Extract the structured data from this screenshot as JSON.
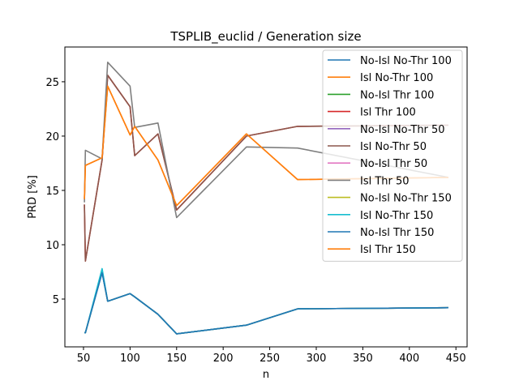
{
  "chart_data": {
    "type": "line",
    "title": "TSPLIB_euclid / Generation size",
    "xlabel": "n",
    "ylabel": "PRD [%]",
    "xlim": [
      30,
      462
    ],
    "ylim": [
      0.6,
      28.2
    ],
    "xticks": [
      50,
      100,
      150,
      200,
      250,
      300,
      350,
      400,
      450
    ],
    "yticks": [
      5,
      10,
      15,
      20,
      25
    ],
    "grid": false,
    "legend_position": "top-right",
    "x": [
      51,
      52,
      70,
      76,
      100,
      105,
      130,
      150,
      225,
      280,
      442
    ],
    "series": [
      {
        "name": "No-Isl No-Thr 100",
        "color": "#1f77b4",
        "values": [
          1.9,
          1.9,
          7.5,
          4.8,
          5.5,
          5.2,
          3.6,
          1.8,
          2.6,
          4.1,
          4.2
        ]
      },
      {
        "name": "Isl No-Thr 100",
        "color": "#ff7f0e",
        "values": [
          14.2,
          17.3,
          18.0,
          24.6,
          20.1,
          20.9,
          17.8,
          13.6,
          20.2,
          16.0,
          16.2
        ]
      },
      {
        "name": "No-Isl Thr 100",
        "color": "#2ca02c",
        "values": [
          1.9,
          1.9,
          7.5,
          4.8,
          5.5,
          5.2,
          3.6,
          1.8,
          2.6,
          4.1,
          4.2
        ]
      },
      {
        "name": "Isl Thr 100",
        "color": "#d62728",
        "values": [
          13.7,
          8.5,
          17.8,
          25.6,
          22.7,
          18.2,
          20.2,
          13.2,
          20.0,
          20.9,
          21.0
        ]
      },
      {
        "name": "No-Isl No-Thr 50",
        "color": "#9467bd",
        "values": [
          1.9,
          1.9,
          7.6,
          4.8,
          5.5,
          5.2,
          3.6,
          1.8,
          2.6,
          4.1,
          4.2
        ]
      },
      {
        "name": "Isl No-Thr 50",
        "color": "#8c564b",
        "values": [
          13.7,
          8.5,
          17.8,
          25.6,
          22.7,
          18.2,
          20.2,
          13.2,
          20.0,
          20.9,
          21.0
        ]
      },
      {
        "name": "No-Isl Thr 50",
        "color": "#e377c2",
        "values": [
          1.9,
          1.9,
          7.7,
          4.8,
          5.5,
          5.2,
          3.6,
          1.8,
          2.6,
          4.1,
          4.2
        ]
      },
      {
        "name": "Isl Thr 50",
        "color": "#7f7f7f",
        "values": [
          13.9,
          18.7,
          17.9,
          26.8,
          24.6,
          20.8,
          21.2,
          12.5,
          19.0,
          18.9,
          16.2
        ]
      },
      {
        "name": "No-Isl No-Thr 150",
        "color": "#bcbd22",
        "values": [
          1.9,
          1.9,
          7.5,
          4.8,
          5.5,
          5.2,
          3.6,
          1.8,
          2.6,
          4.1,
          4.2
        ]
      },
      {
        "name": "Isl No-Thr 150",
        "color": "#17becf",
        "values": [
          1.9,
          1.9,
          7.8,
          4.8,
          5.5,
          5.2,
          3.6,
          1.8,
          2.6,
          4.1,
          4.2
        ]
      },
      {
        "name": "No-Isl Thr 150",
        "color": "#1f77b4",
        "values": [
          1.9,
          1.9,
          7.4,
          4.8,
          5.5,
          5.2,
          3.6,
          1.8,
          2.6,
          4.1,
          4.2
        ]
      },
      {
        "name": "Isl Thr 150",
        "color": "#ff7f0e",
        "values": [
          14.2,
          17.3,
          18.0,
          24.6,
          20.1,
          20.9,
          17.8,
          13.6,
          20.2,
          16.0,
          16.2
        ]
      }
    ]
  }
}
